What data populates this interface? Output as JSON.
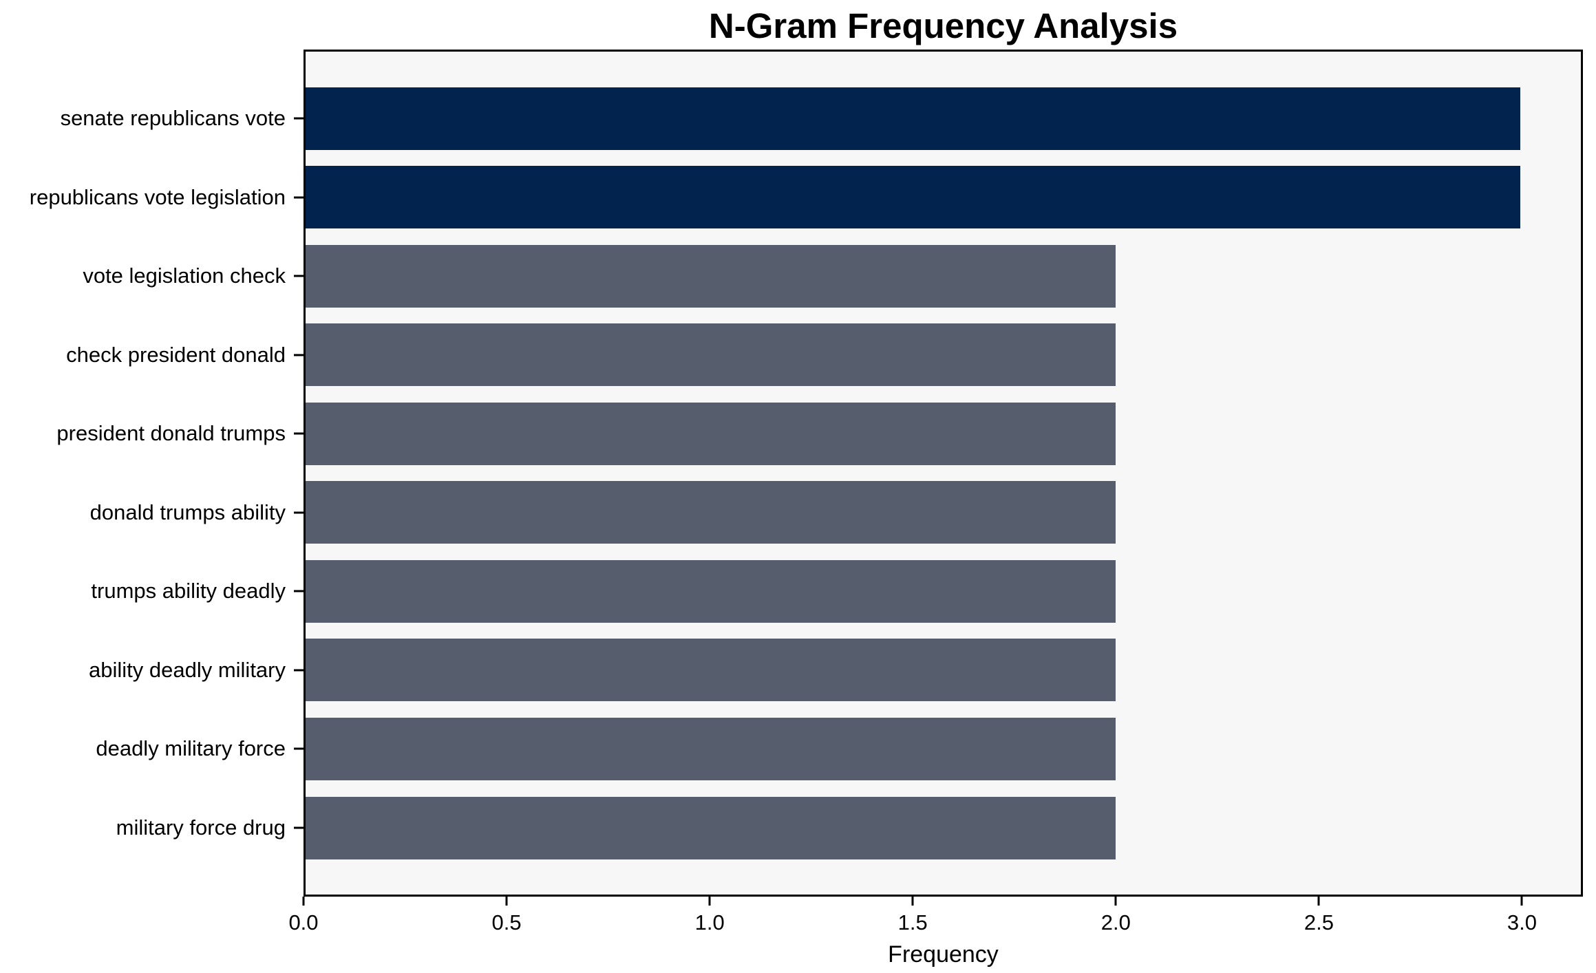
{
  "chart_data": {
    "type": "bar",
    "orientation": "horizontal",
    "title": "N-Gram Frequency Analysis",
    "xlabel": "Frequency",
    "ylabel": "",
    "categories": [
      "senate republicans vote",
      "republicans vote legislation",
      "vote legislation check",
      "check president donald",
      "president donald trumps",
      "donald trumps ability",
      "trumps ability deadly",
      "ability deadly military",
      "deadly military force",
      "military force drug"
    ],
    "values": [
      3,
      3,
      2,
      2,
      2,
      2,
      2,
      2,
      2,
      2
    ],
    "bar_colors": [
      "#02234D",
      "#02234D",
      "#565D6D",
      "#565D6D",
      "#565D6D",
      "#565D6D",
      "#565D6D",
      "#565D6D",
      "#565D6D",
      "#565D6D"
    ],
    "xlim": [
      0,
      3.15
    ],
    "xticks": [
      0,
      0.5,
      1,
      1.5,
      2,
      2.5,
      3
    ],
    "xtick_labels": [
      "0.0",
      "0.5",
      "1.0",
      "1.5",
      "2.0",
      "2.5",
      "3.0"
    ],
    "grid": false,
    "legend": null,
    "colors": {
      "highlight_bar": "#02234D",
      "default_bar": "#565D6D",
      "plot_background": "#F7F7F8",
      "figure_background": "#FFFFFF",
      "axis": "#000000",
      "text": "#000000"
    }
  }
}
